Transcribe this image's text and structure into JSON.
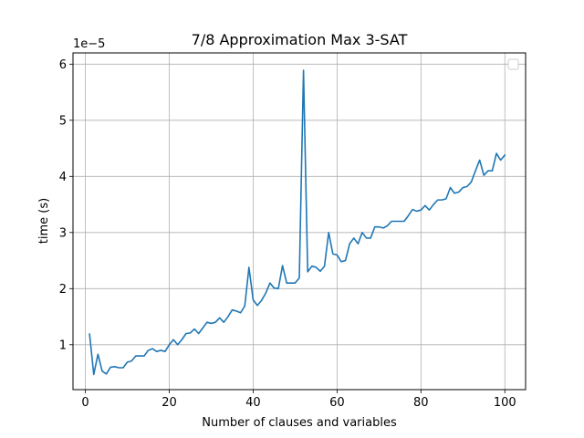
{
  "chart_data": {
    "type": "line",
    "title": "7/8 Approximation Max 3-SAT",
    "xlabel": "Number of clauses and variables",
    "ylabel": "time (s)",
    "y_offset_label": "1e−5",
    "xlim": [
      -2.95,
      104.95
    ],
    "ylim": [
      0.2,
      6.2
    ],
    "y_scale_factor": 1e-05,
    "xticks": [
      0,
      20,
      40,
      60,
      80,
      100
    ],
    "yticks": [
      1,
      2,
      3,
      4,
      5,
      6
    ],
    "grid": true,
    "legend": {
      "placement": "top-right",
      "entries": []
    },
    "series": [
      {
        "color": "#1f77b4",
        "x": [
          1,
          2,
          3,
          4,
          5,
          6,
          7,
          8,
          9,
          10,
          11,
          12,
          13,
          14,
          15,
          16,
          17,
          18,
          19,
          20,
          21,
          22,
          23,
          24,
          25,
          26,
          27,
          28,
          29,
          30,
          31,
          32,
          33,
          34,
          35,
          36,
          37,
          38,
          39,
          40,
          41,
          42,
          43,
          44,
          45,
          46,
          47,
          48,
          49,
          50,
          51,
          52,
          53,
          54,
          55,
          56,
          57,
          58,
          59,
          60,
          61,
          62,
          63,
          64,
          65,
          66,
          67,
          68,
          69,
          70,
          71,
          72,
          73,
          74,
          75,
          76,
          77,
          78,
          79,
          80,
          81,
          82,
          83,
          84,
          85,
          86,
          87,
          88,
          89,
          90,
          91,
          92,
          93,
          94,
          95,
          96,
          97,
          98,
          99,
          100
        ],
        "values": [
          1.19,
          0.47,
          0.83,
          0.53,
          0.48,
          0.6,
          0.61,
          0.59,
          0.59,
          0.69,
          0.71,
          0.8,
          0.8,
          0.8,
          0.9,
          0.93,
          0.88,
          0.9,
          0.88,
          1.0,
          1.09,
          1.0,
          1.09,
          1.2,
          1.21,
          1.28,
          1.2,
          1.3,
          1.4,
          1.38,
          1.4,
          1.48,
          1.4,
          1.5,
          1.62,
          1.6,
          1.57,
          1.69,
          2.38,
          1.8,
          1.7,
          1.79,
          1.92,
          2.1,
          2.01,
          2.0,
          2.41,
          2.1,
          2.1,
          2.1,
          2.19,
          5.89,
          2.3,
          2.4,
          2.38,
          2.31,
          2.4,
          3.0,
          2.62,
          2.6,
          2.48,
          2.5,
          2.8,
          2.9,
          2.8,
          3.0,
          2.9,
          2.9,
          3.1,
          3.1,
          3.08,
          3.12,
          3.2,
          3.2,
          3.2,
          3.2,
          3.3,
          3.41,
          3.38,
          3.4,
          3.48,
          3.4,
          3.5,
          3.58,
          3.58,
          3.6,
          3.8,
          3.7,
          3.72,
          3.8,
          3.82,
          3.9,
          4.1,
          4.29,
          4.02,
          4.1,
          4.1,
          4.41,
          4.29,
          4.38
        ]
      }
    ]
  }
}
